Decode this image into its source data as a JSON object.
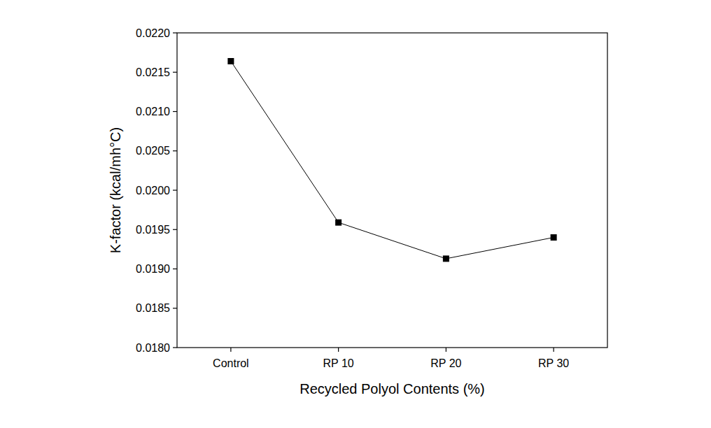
{
  "chart_data": {
    "type": "line",
    "x_label": "Recycled Polyol Contents (%)",
    "y_label": "K-factor (kcal/mh°C)",
    "categories": [
      "Control",
      "RP 10",
      "RP 20",
      "RP 30"
    ],
    "values": [
      0.02164,
      0.01959,
      0.01913,
      0.0194
    ],
    "color": "#000000",
    "marker": "square",
    "line_style": "solid",
    "ylim": [
      0.018,
      0.022
    ],
    "yticks": [
      {
        "value": 0.018,
        "label": "0.0180"
      },
      0.0185,
      {
        "value": 0.019,
        "label": "0.0190"
      },
      0.0195,
      {
        "value": 0.02,
        "label": "0.0200"
      },
      0.0205,
      {
        "value": 0.021,
        "label": "0.0210"
      },
      0.0215,
      {
        "value": 0.022,
        "label": "0.0220"
      }
    ],
    "grid": false
  }
}
